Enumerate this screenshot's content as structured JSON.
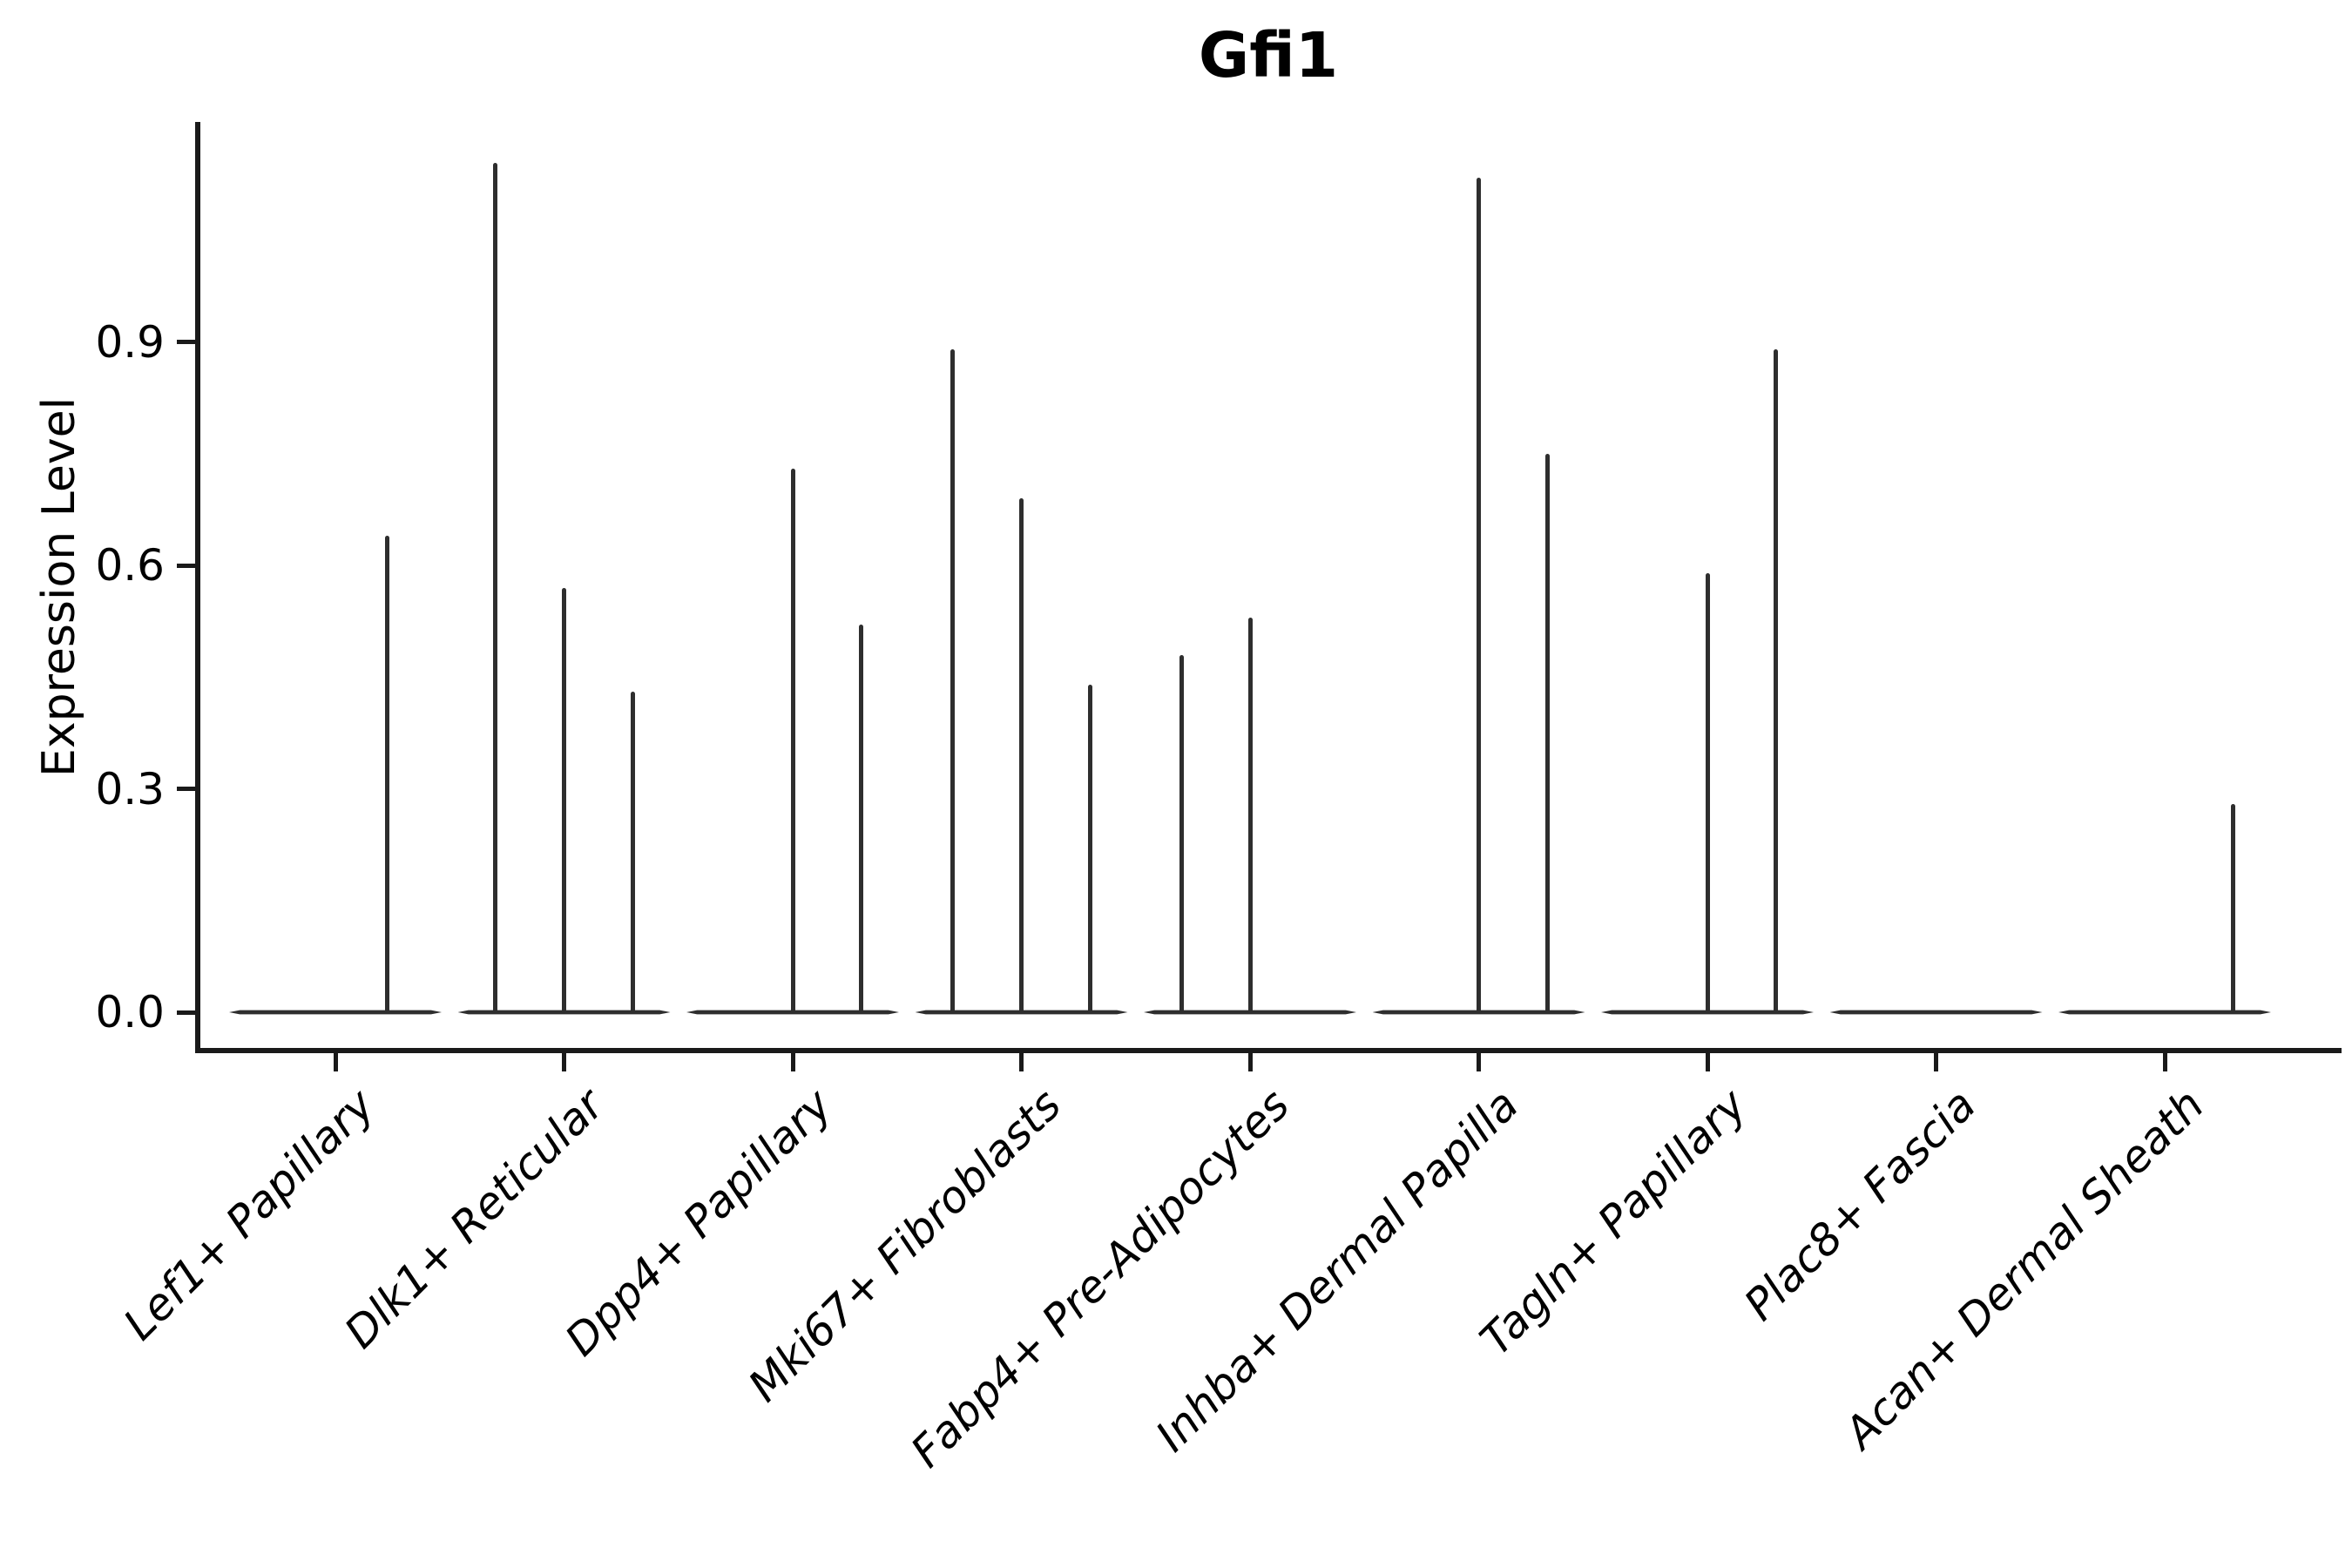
{
  "chart_data": {
    "type": "violin",
    "title": "Gfi1",
    "xlabel": "",
    "ylabel": "Expression Level",
    "legend": "none",
    "grid": false,
    "ylim": [
      -0.06,
      1.2
    ],
    "yticks": [
      {
        "label": "0.0",
        "value": 0.0
      },
      {
        "label": "0.3",
        "value": 0.3
      },
      {
        "label": "0.6",
        "value": 0.6
      },
      {
        "label": "0.9",
        "value": 0.9
      }
    ],
    "categories": [
      "Lef1+ Papillary",
      "Dlk1+ Reticular",
      "Dpp4+ Papillary",
      "Mki67+ Fibroblasts",
      "Fabp4+ Pre-Adipocytes",
      "Inhba+ Dermal Papilla",
      "Tagln+ Papillary",
      "Plac8+ Fascia",
      "Acan+ Dermal Sheath"
    ],
    "violins": [
      {
        "category": "Lef1+ Papillary",
        "baseline_value": 0.0,
        "spikes": [
          {
            "offset": 0.225,
            "value": 0.64
          }
        ]
      },
      {
        "category": "Dlk1+ Reticular",
        "baseline_value": 0.0,
        "spikes": [
          {
            "offset": -0.3,
            "value": 1.14
          },
          {
            "offset": 0.0,
            "value": 0.57
          },
          {
            "offset": 0.3,
            "value": 0.43
          }
        ]
      },
      {
        "category": "Dpp4+ Papillary",
        "baseline_value": 0.0,
        "spikes": [
          {
            "offset": 0.0,
            "value": 0.73
          },
          {
            "offset": 0.3,
            "value": 0.52
          }
        ]
      },
      {
        "category": "Mki67+ Fibroblasts",
        "baseline_value": 0.0,
        "spikes": [
          {
            "offset": -0.3,
            "value": 0.89
          },
          {
            "offset": 0.0,
            "value": 0.69
          },
          {
            "offset": 0.3,
            "value": 0.44
          }
        ]
      },
      {
        "category": "Fabp4+ Pre-Adipocytes",
        "baseline_value": 0.0,
        "spikes": [
          {
            "offset": -0.3,
            "value": 0.48
          },
          {
            "offset": 0.0,
            "value": 0.53
          }
        ]
      },
      {
        "category": "Inhba+ Dermal Papilla",
        "baseline_value": 0.0,
        "spikes": [
          {
            "offset": 0.0,
            "value": 1.12
          },
          {
            "offset": 0.3,
            "value": 0.75
          }
        ]
      },
      {
        "category": "Tagln+ Papillary",
        "baseline_value": 0.0,
        "spikes": [
          {
            "offset": 0.0,
            "value": 0.59
          },
          {
            "offset": 0.3,
            "value": 0.89
          }
        ]
      },
      {
        "category": "Plac8+ Fascia",
        "baseline_value": 0.0,
        "spikes": []
      },
      {
        "category": "Acan+ Dermal Sheath",
        "baseline_value": 0.0,
        "spikes": [
          {
            "offset": 0.3,
            "value": 0.28
          }
        ]
      }
    ],
    "colors": {
      "violin": "#2e2e2e",
      "axis": "#1a1a1a",
      "text": "#000000",
      "background": "#ffffff"
    }
  }
}
